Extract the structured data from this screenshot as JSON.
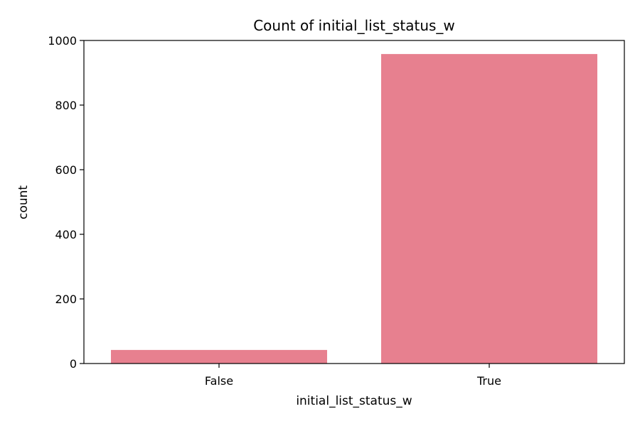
{
  "chart_data": {
    "type": "bar",
    "title": "Count of initial_list_status_w",
    "xlabel": "initial_list_status_w",
    "ylabel": "count",
    "categories": [
      "False",
      "True"
    ],
    "values": [
      42,
      958
    ],
    "ylim": [
      0,
      1000
    ],
    "yticks": [
      0,
      200,
      400,
      600,
      800,
      1000
    ],
    "grid": false,
    "legend": false,
    "bar_color": "#e7808f"
  }
}
